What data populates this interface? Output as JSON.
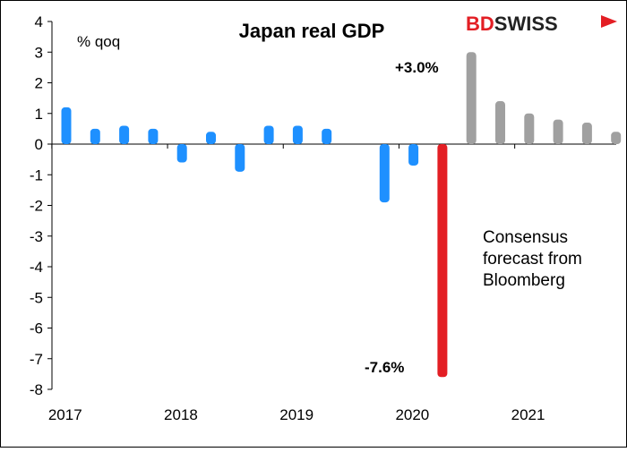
{
  "chart_data": {
    "type": "bar",
    "title": "Japan real GDP",
    "ylabel": "% qoq",
    "ylim": [
      -8,
      4
    ],
    "yticks": [
      4,
      3,
      2,
      1,
      0,
      -1,
      -2,
      -3,
      -4,
      -5,
      -6,
      -7,
      -8
    ],
    "grid": false,
    "quarters": [
      "2017Q1",
      "2017Q2",
      "2017Q3",
      "2017Q4",
      "2018Q1",
      "2018Q2",
      "2018Q3",
      "2018Q4",
      "2019Q1",
      "2019Q2",
      "2019Q3",
      "2019Q4",
      "2020Q1",
      "2020Q2",
      "2020Q3",
      "2020Q4",
      "2021Q1",
      "2021Q2",
      "2021Q3",
      "2021Q4"
    ],
    "year_labels": [
      "2017",
      "2018",
      "2019",
      "2020",
      "2021"
    ],
    "series": [
      {
        "role": "actual",
        "color": "#1e90ff",
        "points": [
          {
            "q": "2017Q1",
            "v": 1.2
          },
          {
            "q": "2017Q2",
            "v": 0.5
          },
          {
            "q": "2017Q3",
            "v": 0.6
          },
          {
            "q": "2017Q4",
            "v": 0.5
          },
          {
            "q": "2018Q1",
            "v": -0.6
          },
          {
            "q": "2018Q2",
            "v": 0.4
          },
          {
            "q": "2018Q3",
            "v": -0.9
          },
          {
            "q": "2018Q4",
            "v": 0.6
          },
          {
            "q": "2019Q1",
            "v": 0.6
          },
          {
            "q": "2019Q2",
            "v": 0.5
          },
          {
            "q": "2019Q4",
            "v": -1.9
          },
          {
            "q": "2020Q1",
            "v": -0.7
          }
        ]
      },
      {
        "role": "latest",
        "color": "#e31e24",
        "points": [
          {
            "q": "2020Q2",
            "v": -7.6
          }
        ]
      },
      {
        "name": "Consensus forecast from Bloomberg",
        "color": "#a0a0a0",
        "points": [
          {
            "q": "2020Q3",
            "v": 3.0
          },
          {
            "q": "2020Q4",
            "v": 1.4
          },
          {
            "q": "2021Q1",
            "v": 1.0
          },
          {
            "q": "2021Q2",
            "v": 0.8
          },
          {
            "q": "2021Q3",
            "v": 0.7
          },
          {
            "q": "2021Q4",
            "v": 0.4
          }
        ]
      }
    ],
    "annotations": {
      "forecast_label": "+3.0%",
      "actual_label": "-7.6%",
      "forecast_note": [
        "Consensus",
        "forecast from",
        "Bloomberg"
      ]
    }
  },
  "brand": {
    "part1": "BD",
    "part2": "SWISS",
    "red": "#e31e24"
  }
}
